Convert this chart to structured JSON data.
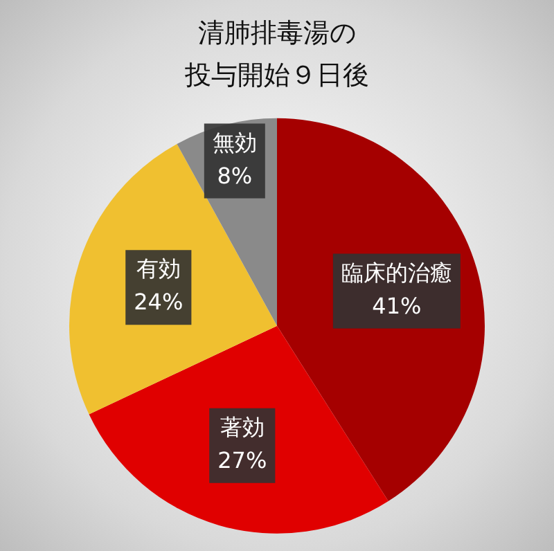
{
  "chart_data": {
    "type": "pie",
    "title": "清肺排毒湯の投与開始９日後",
    "categories": [
      "臨床的治癒",
      "著効",
      "有効",
      "無効"
    ],
    "values": [
      41,
      27,
      24,
      8
    ],
    "colors": [
      "#a50000",
      "#e00000",
      "#f0c030",
      "#8a8a8a"
    ],
    "value_labels": [
      "41%",
      "27%",
      "24%",
      "8%"
    ],
    "legend": false
  }
}
